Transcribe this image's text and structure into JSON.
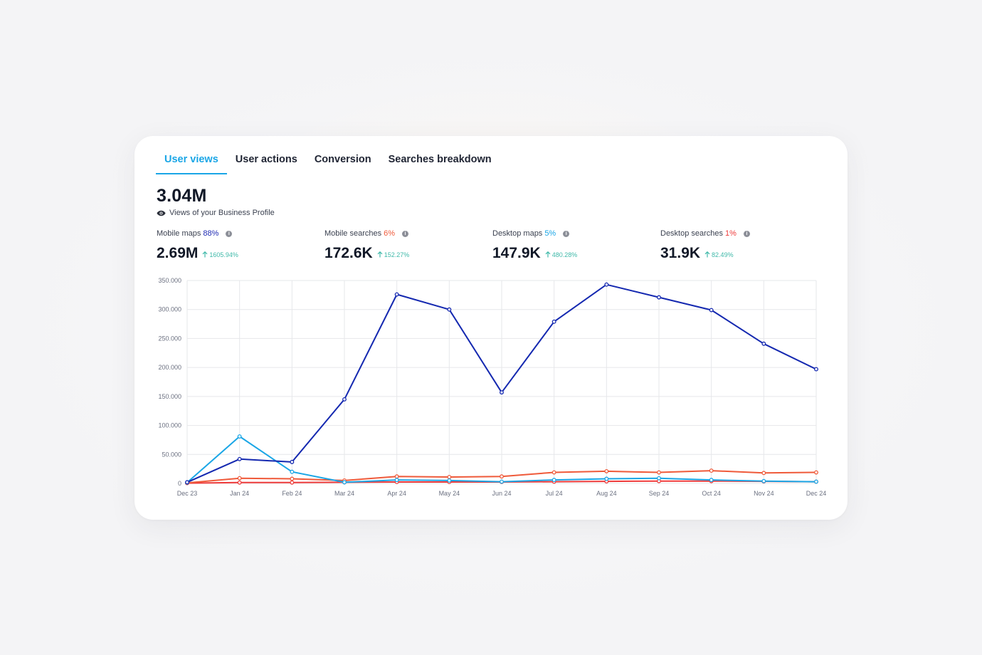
{
  "tabs": [
    {
      "label": "User views",
      "active": true
    },
    {
      "label": "User actions",
      "active": false
    },
    {
      "label": "Conversion",
      "active": false
    },
    {
      "label": "Searches breakdown",
      "active": false
    }
  ],
  "summary": {
    "total": "3.04M",
    "subtitle": "Views of your Business Profile"
  },
  "metrics": [
    {
      "label": "Mobile maps",
      "share": "88%",
      "share_color": "#1f2bb3",
      "value": "2.69M",
      "change": "1605.94%"
    },
    {
      "label": "Mobile searches",
      "share": "6%",
      "share_color": "#ef5a3a",
      "value": "172.6K",
      "change": "152.27%"
    },
    {
      "label": "Desktop maps",
      "share": "5%",
      "share_color": "#1aa6e6",
      "value": "147.9K",
      "change": "480.28%"
    },
    {
      "label": "Desktop searches",
      "share": "1%",
      "share_color": "#ee3b3b",
      "value": "31.9K",
      "change": "82.49%"
    }
  ],
  "colors": {
    "accent": "#1aa6e6",
    "trend_up": "#3fb9a9",
    "grid": "#e6e7ea"
  },
  "chart_data": {
    "type": "line",
    "categories": [
      "Dec 23",
      "Jan 24",
      "Feb 24",
      "Mar 24",
      "Apr 24",
      "May 24",
      "Jun 24",
      "Jul 24",
      "Aug 24",
      "Sep 24",
      "Oct 24",
      "Nov 24",
      "Dec 24"
    ],
    "y_ticks": [
      0,
      50000,
      100000,
      150000,
      200000,
      250000,
      300000,
      350000
    ],
    "y_tick_labels": [
      "0",
      "50.000",
      "100.000",
      "150.000",
      "200.000",
      "250.000",
      "300.000",
      "350.000"
    ],
    "ylim": [
      0,
      350000
    ],
    "grid": true,
    "series": [
      {
        "name": "Mobile maps",
        "color": "#1428b0",
        "values": [
          2000,
          42000,
          37000,
          145000,
          326000,
          300000,
          157000,
          279000,
          343000,
          321000,
          299000,
          241000,
          197000
        ]
      },
      {
        "name": "Mobile searches",
        "color": "#ef5a3a",
        "values": [
          1000,
          9000,
          8000,
          5000,
          12000,
          11000,
          12000,
          19000,
          21000,
          19000,
          22000,
          18000,
          19000
        ]
      },
      {
        "name": "Desktop maps",
        "color": "#1aa6e6",
        "values": [
          1500,
          81000,
          20000,
          2000,
          6000,
          5000,
          3000,
          6000,
          8000,
          9000,
          6000,
          4000,
          3000
        ]
      },
      {
        "name": "Desktop searches",
        "color": "#ee3b3b",
        "values": [
          500,
          1500,
          1500,
          2000,
          2500,
          2500,
          2500,
          3000,
          3500,
          4000,
          4000,
          3500,
          3000
        ]
      }
    ]
  }
}
